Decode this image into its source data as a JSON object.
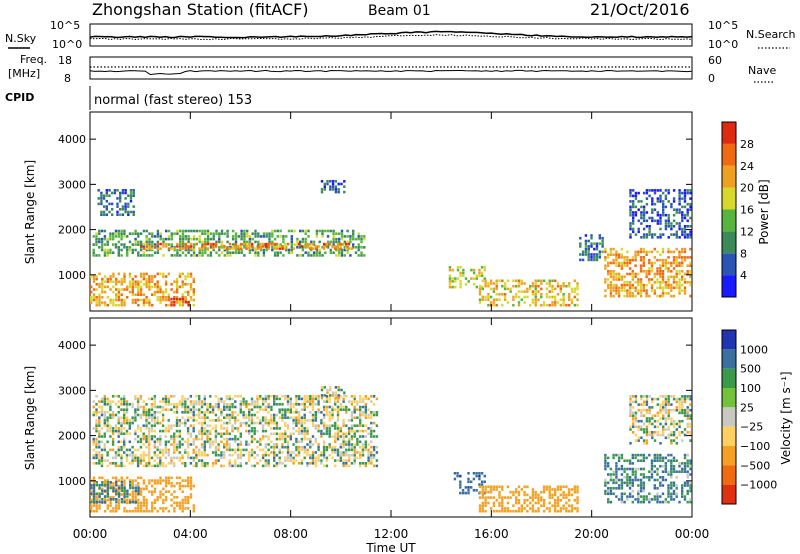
{
  "header": {
    "station": "Zhongshan Station (fitACF)",
    "beam": "Beam 01",
    "date": "21/Oct/2016"
  },
  "top_panels": {
    "nsky_label": "N.Sky",
    "nsearch_label": "N.Search",
    "freq_label": "Freq.",
    "freq_unit": "[MHz]",
    "nave_label": "Nave",
    "cpid_label": "CPID",
    "noise_ticks": [
      "10^5",
      "10^0"
    ],
    "noise_right_ticks": [
      "10^5",
      "10^0"
    ],
    "freq_ticks": [
      "18",
      "8"
    ],
    "nave_ticks": [
      "60",
      "0"
    ],
    "cpid_text": "normal (fast stereo) 153"
  },
  "axes": {
    "ylabel": "Slant Range [km]",
    "y_ticks": [
      "1000",
      "2000",
      "3000",
      "4000"
    ],
    "x_ticks": [
      "00:00",
      "04:00",
      "08:00",
      "12:00",
      "16:00",
      "20:00",
      "00:00"
    ],
    "xlabel": "Time UT"
  },
  "power_scale": {
    "label": "Power [dB]",
    "ticks": [
      "4",
      "8",
      "12",
      "16",
      "20",
      "24",
      "28"
    ],
    "colors": [
      "#1a1aff",
      "#2a55b5",
      "#3a8a5a",
      "#55b53c",
      "#d8d82a",
      "#f0a020",
      "#f06a10",
      "#e02a10"
    ]
  },
  "velocity_scale": {
    "label": "Velocity [m s⁻¹]",
    "ticks": [
      "1000",
      "500",
      "100",
      "25",
      "−25",
      "−100",
      "−500",
      "−1000"
    ],
    "colors": [
      "#2035b0",
      "#3a70a0",
      "#3a9a4a",
      "#72c23a",
      "#c8c8c0",
      "#ffd060",
      "#f5a020",
      "#f06a10",
      "#e03010"
    ]
  },
  "chart_data": [
    {
      "type": "heatmap",
      "title": "Power",
      "xlabel": "Time UT",
      "ylabel": "Slant Range [km]",
      "xlim": [
        0,
        24
      ],
      "ylim": [
        200,
        4600
      ],
      "colorbar": {
        "label": "Power [dB]",
        "range": [
          0,
          32
        ]
      },
      "regions": [
        {
          "t": [
            0.1,
            11.0
          ],
          "r": [
            1400,
            2000
          ],
          "v": 12
        },
        {
          "t": [
            2.0,
            10.5
          ],
          "r": [
            1550,
            1700
          ],
          "v": 24
        },
        {
          "t": [
            0.0,
            4.2
          ],
          "r": [
            300,
            1050
          ],
          "v": 22
        },
        {
          "t": [
            3.2,
            4.0
          ],
          "r": [
            300,
            500
          ],
          "v": 28
        },
        {
          "t": [
            0.3,
            1.8
          ],
          "r": [
            2300,
            2900
          ],
          "v": 8
        },
        {
          "t": [
            9.2,
            10.2
          ],
          "r": [
            2800,
            3100
          ],
          "v": 6
        },
        {
          "t": [
            14.3,
            15.8
          ],
          "r": [
            700,
            1200
          ],
          "v": 18
        },
        {
          "t": [
            15.5,
            19.5
          ],
          "r": [
            300,
            900
          ],
          "v": 20
        },
        {
          "t": [
            19.5,
            20.5
          ],
          "r": [
            1300,
            1900
          ],
          "v": 8
        },
        {
          "t": [
            20.5,
            24.0
          ],
          "r": [
            500,
            1600
          ],
          "v": 22
        },
        {
          "t": [
            21.5,
            24.0
          ],
          "r": [
            1800,
            2900
          ],
          "v": 6
        }
      ]
    },
    {
      "type": "heatmap",
      "title": "Velocity",
      "xlabel": "Time UT",
      "ylabel": "Slant Range [km]",
      "xlim": [
        0,
        24
      ],
      "ylim": [
        200,
        4600
      ],
      "colorbar": {
        "label": "Velocity [m s⁻¹]",
        "range": [
          -1000,
          1000
        ]
      },
      "regions": [
        {
          "t": [
            0.1,
            11.5
          ],
          "r": [
            1300,
            2900
          ],
          "v": 0
        },
        {
          "t": [
            0.0,
            4.2
          ],
          "r": [
            300,
            1100
          ],
          "v": -300
        },
        {
          "t": [
            0.0,
            2.0
          ],
          "r": [
            500,
            1000
          ],
          "v": 150
        },
        {
          "t": [
            9.2,
            10.2
          ],
          "r": [
            2800,
            3100
          ],
          "v": 0
        },
        {
          "t": [
            14.5,
            15.8
          ],
          "r": [
            700,
            1200
          ],
          "v": 400
        },
        {
          "t": [
            15.5,
            19.5
          ],
          "r": [
            300,
            900
          ],
          "v": -250
        },
        {
          "t": [
            20.5,
            24.0
          ],
          "r": [
            500,
            1600
          ],
          "v": 120
        },
        {
          "t": [
            21.5,
            24.0
          ],
          "r": [
            1800,
            2900
          ],
          "v": 0
        }
      ]
    }
  ]
}
